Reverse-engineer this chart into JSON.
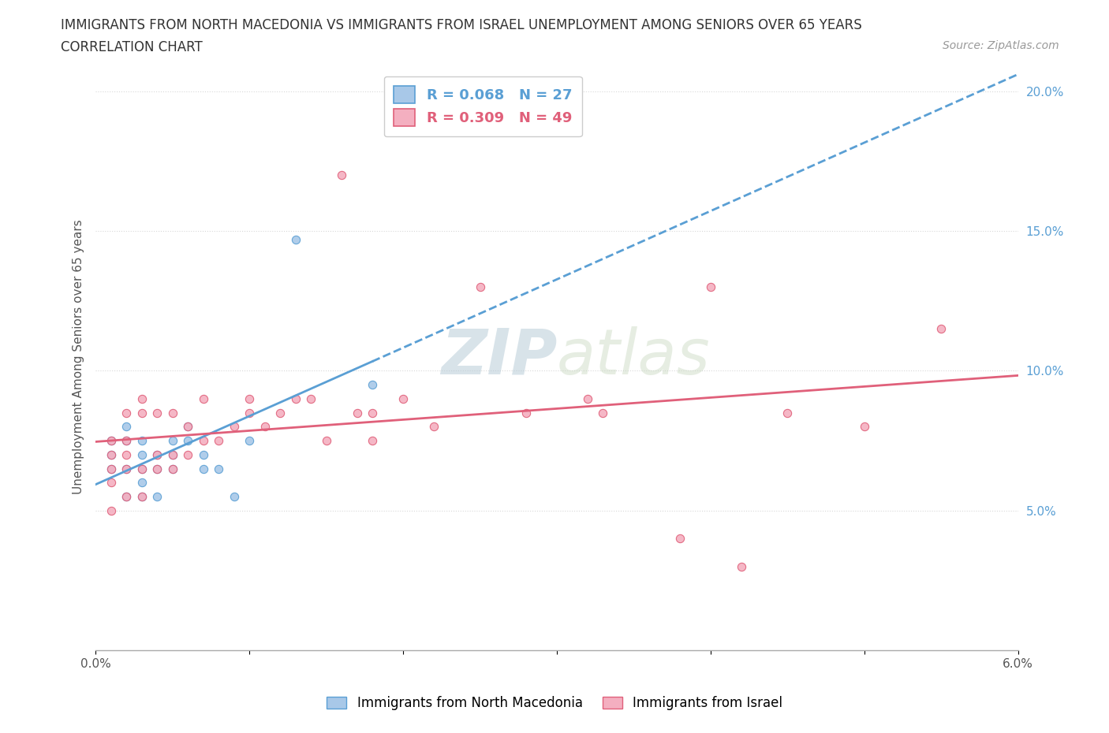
{
  "title_line1": "IMMIGRANTS FROM NORTH MACEDONIA VS IMMIGRANTS FROM ISRAEL UNEMPLOYMENT AMONG SENIORS OVER 65 YEARS",
  "title_line2": "CORRELATION CHART",
  "source": "Source: ZipAtlas.com",
  "ylabel": "Unemployment Among Seniors over 65 years",
  "xlim": [
    0.0,
    0.06
  ],
  "ylim": [
    0.0,
    0.21
  ],
  "xticks": [
    0.0,
    0.01,
    0.02,
    0.03,
    0.04,
    0.05,
    0.06
  ],
  "xticklabels_ends": {
    "0.0": "0.0%",
    "0.06": "6.0%"
  },
  "yticks": [
    0.05,
    0.1,
    0.15,
    0.2
  ],
  "yticklabels": [
    "5.0%",
    "10.0%",
    "15.0%",
    "20.0%"
  ],
  "r_macedonia": 0.068,
  "n_macedonia": 27,
  "r_israel": 0.309,
  "n_israel": 49,
  "color_macedonia": "#a8c8e8",
  "color_israel": "#f4afc0",
  "trendline_macedonia_color": "#5a9fd4",
  "trendline_israel_color": "#e0607a",
  "macedonia_x": [
    0.001,
    0.001,
    0.001,
    0.002,
    0.002,
    0.002,
    0.002,
    0.003,
    0.003,
    0.003,
    0.003,
    0.003,
    0.004,
    0.004,
    0.004,
    0.005,
    0.005,
    0.005,
    0.006,
    0.006,
    0.007,
    0.007,
    0.008,
    0.009,
    0.01,
    0.013,
    0.018
  ],
  "macedonia_y": [
    0.065,
    0.07,
    0.075,
    0.055,
    0.065,
    0.075,
    0.08,
    0.065,
    0.07,
    0.075,
    0.06,
    0.055,
    0.065,
    0.07,
    0.055,
    0.065,
    0.07,
    0.075,
    0.075,
    0.08,
    0.065,
    0.07,
    0.065,
    0.055,
    0.075,
    0.147,
    0.095
  ],
  "israel_x": [
    0.001,
    0.001,
    0.001,
    0.001,
    0.001,
    0.002,
    0.002,
    0.002,
    0.002,
    0.002,
    0.003,
    0.003,
    0.003,
    0.003,
    0.004,
    0.004,
    0.004,
    0.005,
    0.005,
    0.005,
    0.006,
    0.006,
    0.007,
    0.007,
    0.008,
    0.009,
    0.01,
    0.01,
    0.011,
    0.012,
    0.013,
    0.014,
    0.015,
    0.016,
    0.017,
    0.018,
    0.02,
    0.022,
    0.025,
    0.028,
    0.032,
    0.038,
    0.04,
    0.045,
    0.05,
    0.055,
    0.018,
    0.033,
    0.042
  ],
  "israel_y": [
    0.065,
    0.06,
    0.07,
    0.075,
    0.05,
    0.065,
    0.055,
    0.075,
    0.085,
    0.07,
    0.065,
    0.055,
    0.085,
    0.09,
    0.065,
    0.07,
    0.085,
    0.065,
    0.07,
    0.085,
    0.07,
    0.08,
    0.075,
    0.09,
    0.075,
    0.08,
    0.085,
    0.09,
    0.08,
    0.085,
    0.09,
    0.09,
    0.075,
    0.17,
    0.085,
    0.085,
    0.09,
    0.08,
    0.13,
    0.085,
    0.09,
    0.04,
    0.13,
    0.085,
    0.08,
    0.115,
    0.075,
    0.085,
    0.03
  ],
  "background_color": "#ffffff",
  "grid_color": "#d8d8d8",
  "watermark_text": "ZIPatlas",
  "watermark_color": "#d0dce8",
  "watermark_alpha": 0.6
}
